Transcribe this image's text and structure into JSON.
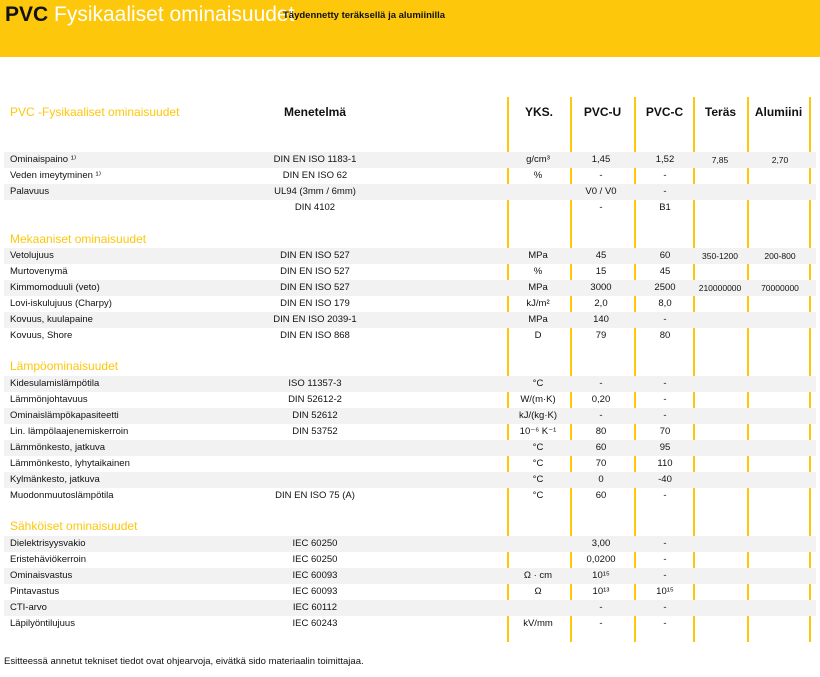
{
  "banner": {
    "brand": "PVC",
    "title": "Fysikaaliset ominaisuudet",
    "subtitle": "Täydennetty teräksellä ja alumiinilla"
  },
  "accent_color": "#fdc70c",
  "header": {
    "property": "PVC -Fysikaaliset ominaisuudet",
    "method": "Menetelmä",
    "unit": "YKS.",
    "pvc_u": "PVC-U",
    "pvc_c": "PVC-C",
    "steel": "Teräs",
    "aluminium": "Alumiini"
  },
  "sections": [
    {
      "title": "",
      "rows": [
        [
          "Ominaispaino ¹⁾",
          "DIN EN ISO 1183-1",
          "g/cm³",
          "1,45",
          "1,52",
          "7,85",
          "2,70"
        ],
        [
          "Veden imeytyminen ¹⁾",
          "DIN EN ISO 62",
          "%",
          "-",
          "-",
          "",
          ""
        ],
        [
          "Palavuus",
          "UL94  (3mm / 6mm)",
          "",
          "V0 / V0",
          "-",
          "",
          ""
        ],
        [
          "",
          "DIN 4102",
          "",
          "-",
          "B1",
          "",
          ""
        ]
      ]
    },
    {
      "title": "Mekaaniset ominaisuudet",
      "rows": [
        [
          "Vetolujuus",
          "DIN EN ISO 527",
          "MPa",
          "45",
          "60",
          "350-1200",
          "200-800"
        ],
        [
          "Murtovenymä",
          "DIN EN ISO 527",
          "%",
          "15",
          "45",
          "",
          ""
        ],
        [
          "Kimmomoduuli (veto)",
          "DIN EN ISO 527",
          "MPa",
          "3000",
          "2500",
          "210000000",
          "70000000"
        ],
        [
          "Lovi-iskulujuus (Charpy)",
          "DIN EN ISO 179",
          "kJ/m²",
          "2,0",
          "8,0",
          "",
          ""
        ],
        [
          "Kovuus, kuulapaine",
          "DIN EN ISO 2039-1",
          "MPa",
          "140",
          "-",
          "",
          ""
        ],
        [
          "Kovuus, Shore",
          "DIN EN ISO 868",
          "D",
          "79",
          "80",
          "",
          ""
        ]
      ]
    },
    {
      "title": "Lämpöominaisuudet",
      "rows": [
        [
          "Kidesulamislämpötila",
          "ISO 11357-3",
          "°C",
          "-",
          "-",
          "",
          ""
        ],
        [
          "Lämmönjohtavuus",
          "DIN 52612-2",
          "W/(m·K)",
          "0,20",
          "-",
          "",
          ""
        ],
        [
          "Ominaislämpökapasiteetti",
          "DIN 52612",
          "kJ/(kg·K)",
          "-",
          "-",
          "",
          ""
        ],
        [
          "Lin. lämpölaajenemiskerroin",
          "DIN 53752",
          "10⁻⁶ K⁻¹",
          "80",
          "70",
          "",
          ""
        ],
        [
          "Lämmönkesto, jatkuva",
          "",
          "°C",
          "60",
          "95",
          "",
          ""
        ],
        [
          "Lämmönkesto, lyhytaikainen",
          "",
          "°C",
          "70",
          "110",
          "",
          ""
        ],
        [
          "Kylmänkesto, jatkuva",
          "",
          "°C",
          "0",
          "-40",
          "",
          ""
        ],
        [
          "Muodonmuutoslämpötila",
          "DIN EN ISO 75 (A)",
          "°C",
          "60",
          "-",
          "",
          ""
        ]
      ]
    },
    {
      "title": "Sähköiset ominaisuudet",
      "rows": [
        [
          "Dielektrisyysvakio",
          "IEC 60250",
          "",
          "3,00",
          "-",
          "",
          ""
        ],
        [
          "Eristehäviökerroin",
          "IEC 60250",
          "",
          "0,0200",
          "-",
          "",
          ""
        ],
        [
          "Ominaisvastus",
          "IEC 60093",
          "Ω · cm",
          "10¹⁵",
          "-",
          "",
          ""
        ],
        [
          "Pintavastus",
          "IEC 60093",
          "Ω",
          "10¹³",
          "10¹⁵",
          "",
          ""
        ],
        [
          "CTI-arvo",
          "IEC 60112",
          "",
          "-",
          "-",
          "",
          ""
        ],
        [
          "Läpilyöntilujuus",
          "IEC 60243",
          "kV/mm",
          "-",
          "-",
          "",
          ""
        ]
      ]
    }
  ],
  "footer": "Esitteessä annetut tekniset tiedot ovat ohjearvoja, eivätkä sido materiaalin toimittajaa."
}
